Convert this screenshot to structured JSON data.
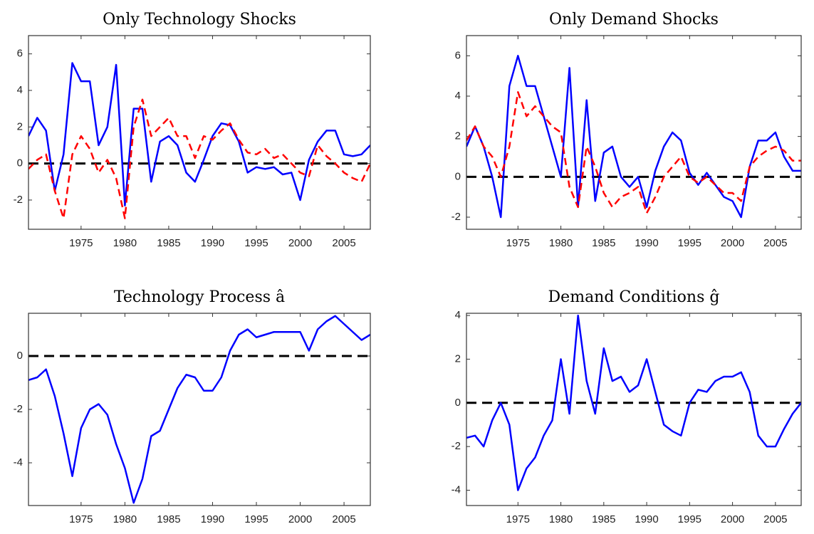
{
  "chart_data": [
    {
      "type": "line",
      "title": "Only Technology Shocks",
      "x": [
        1969,
        1970,
        1971,
        1972,
        1973,
        1974,
        1975,
        1976,
        1977,
        1978,
        1979,
        1980,
        1981,
        1982,
        1983,
        1984,
        1985,
        1986,
        1987,
        1988,
        1989,
        1990,
        1991,
        1992,
        1993,
        1994,
        1995,
        1996,
        1997,
        1998,
        1999,
        2000,
        2001,
        2002,
        2003,
        2004,
        2005,
        2006,
        2007,
        2008
      ],
      "series": [
        {
          "color": "#0000ff",
          "dashed": false,
          "values": [
            1.5,
            2.5,
            1.8,
            -1.5,
            0.5,
            5.5,
            4.5,
            4.5,
            1.0,
            2.0,
            5.4,
            -2.3,
            3.0,
            3.0,
            -1.0,
            1.2,
            1.5,
            1.0,
            -0.5,
            -1.0,
            0.2,
            1.5,
            2.2,
            2.1,
            1.2,
            -0.5,
            -0.2,
            -0.3,
            -0.2,
            -0.6,
            -0.5,
            -2.0,
            0.2,
            1.2,
            1.8,
            1.8,
            0.5,
            0.4,
            0.5,
            1.0
          ]
        },
        {
          "color": "#ff0000",
          "dashed": true,
          "values": [
            -0.3,
            0.2,
            0.5,
            -1.5,
            -3.0,
            0.5,
            1.5,
            0.8,
            -0.5,
            0.2,
            -0.8,
            -3.0,
            2.0,
            3.5,
            1.5,
            2.0,
            2.5,
            1.5,
            1.5,
            0.3,
            1.5,
            1.3,
            1.8,
            2.2,
            1.3,
            0.6,
            0.5,
            0.8,
            0.3,
            0.5,
            0.0,
            -0.5,
            -0.7,
            1.0,
            0.4,
            0.0,
            -0.5,
            -0.8,
            -1.0,
            0.0
          ]
        }
      ],
      "xlim": [
        1969,
        2008
      ],
      "xticks": [
        1975,
        1980,
        1985,
        1990,
        1995,
        2000,
        2005
      ],
      "ylim": [
        -3.6,
        7
      ],
      "yticks": [
        -2,
        0,
        2,
        4,
        6
      ],
      "hline": 0
    },
    {
      "type": "line",
      "title": "Only Demand Shocks",
      "x": [
        1969,
        1970,
        1971,
        1972,
        1973,
        1974,
        1975,
        1976,
        1977,
        1978,
        1979,
        1980,
        1981,
        1982,
        1983,
        1984,
        1985,
        1986,
        1987,
        1988,
        1989,
        1990,
        1991,
        1992,
        1993,
        1994,
        1995,
        1996,
        1997,
        1998,
        1999,
        2000,
        2001,
        2002,
        2003,
        2004,
        2005,
        2006,
        2007,
        2008
      ],
      "series": [
        {
          "color": "#0000ff",
          "dashed": false,
          "values": [
            1.5,
            2.5,
            1.5,
            0.0,
            -2.0,
            4.5,
            6.0,
            4.5,
            4.5,
            3.0,
            1.5,
            0.0,
            5.4,
            -1.5,
            3.8,
            -1.2,
            1.2,
            1.5,
            0.0,
            -0.5,
            0.0,
            -1.5,
            0.3,
            1.5,
            2.2,
            1.8,
            0.2,
            -0.4,
            0.2,
            -0.4,
            -1.0,
            -1.2,
            -2.0,
            0.5,
            1.8,
            1.8,
            2.2,
            1.0,
            0.3,
            0.3
          ]
        },
        {
          "color": "#ff0000",
          "dashed": true,
          "values": [
            1.8,
            2.5,
            1.5,
            1.0,
            0.0,
            1.5,
            4.2,
            3.0,
            3.5,
            3.0,
            2.5,
            2.2,
            -0.5,
            -1.5,
            1.5,
            0.5,
            -0.8,
            -1.5,
            -1.0,
            -0.8,
            -0.5,
            -1.8,
            -1.0,
            0.0,
            0.5,
            1.0,
            0.0,
            -0.3,
            0.0,
            -0.4,
            -0.8,
            -0.8,
            -1.2,
            0.5,
            1.0,
            1.3,
            1.5,
            1.3,
            0.8,
            0.8
          ]
        }
      ],
      "xlim": [
        1969,
        2008
      ],
      "xticks": [
        1975,
        1980,
        1985,
        1990,
        1995,
        2000,
        2005
      ],
      "ylim": [
        -2.6,
        7
      ],
      "yticks": [
        -2,
        0,
        2,
        4,
        6
      ],
      "hline": 0
    },
    {
      "type": "line",
      "title": "Technology Process â",
      "x": [
        1969,
        1970,
        1971,
        1972,
        1973,
        1974,
        1975,
        1976,
        1977,
        1978,
        1979,
        1980,
        1981,
        1982,
        1983,
        1984,
        1985,
        1986,
        1987,
        1988,
        1989,
        1990,
        1991,
        1992,
        1993,
        1994,
        1995,
        1996,
        1997,
        1998,
        1999,
        2000,
        2001,
        2002,
        2003,
        2004,
        2005,
        2006,
        2007,
        2008
      ],
      "series": [
        {
          "color": "#0000ff",
          "dashed": false,
          "values": [
            -0.9,
            -0.8,
            -0.5,
            -1.5,
            -2.9,
            -4.5,
            -2.7,
            -2.0,
            -1.8,
            -2.2,
            -3.3,
            -4.2,
            -5.5,
            -4.6,
            -3.0,
            -2.8,
            -2.0,
            -1.2,
            -0.7,
            -0.8,
            -1.3,
            -1.3,
            -0.8,
            0.2,
            0.8,
            1.0,
            0.7,
            0.8,
            0.9,
            0.9,
            0.9,
            0.9,
            0.2,
            1.0,
            1.3,
            1.5,
            1.2,
            0.9,
            0.6,
            0.8
          ]
        }
      ],
      "xlim": [
        1969,
        2008
      ],
      "xticks": [
        1975,
        1980,
        1985,
        1990,
        1995,
        2000,
        2005
      ],
      "ylim": [
        -5.6,
        1.6
      ],
      "yticks": [
        -4,
        -2,
        0
      ],
      "hline": 0
    },
    {
      "type": "line",
      "title": "Demand Conditions ĝ",
      "x": [
        1969,
        1970,
        1971,
        1972,
        1973,
        1974,
        1975,
        1976,
        1977,
        1978,
        1979,
        1980,
        1981,
        1982,
        1983,
        1984,
        1985,
        1986,
        1987,
        1988,
        1989,
        1990,
        1991,
        1992,
        1993,
        1994,
        1995,
        1996,
        1997,
        1998,
        1999,
        2000,
        2001,
        2002,
        2003,
        2004,
        2005,
        2006,
        2007,
        2008
      ],
      "series": [
        {
          "color": "#0000ff",
          "dashed": false,
          "values": [
            -1.6,
            -1.5,
            -2.0,
            -0.8,
            0.0,
            -1.0,
            -4.0,
            -3.0,
            -2.5,
            -1.5,
            -0.8,
            2.0,
            -0.5,
            4.0,
            1.0,
            -0.5,
            2.5,
            1.0,
            1.2,
            0.5,
            0.8,
            2.0,
            0.5,
            -1.0,
            -1.3,
            -1.5,
            0.0,
            0.6,
            0.5,
            1.0,
            1.2,
            1.2,
            1.4,
            0.5,
            -1.5,
            -2.0,
            -2.0,
            -1.2,
            -0.5,
            0.0
          ]
        }
      ],
      "xlim": [
        1969,
        2008
      ],
      "xticks": [
        1975,
        1980,
        1985,
        1990,
        1995,
        2000,
        2005
      ],
      "ylim": [
        -4.7,
        4.1
      ],
      "yticks": [
        -4,
        -2,
        0,
        2,
        4
      ],
      "hline": 0
    }
  ]
}
